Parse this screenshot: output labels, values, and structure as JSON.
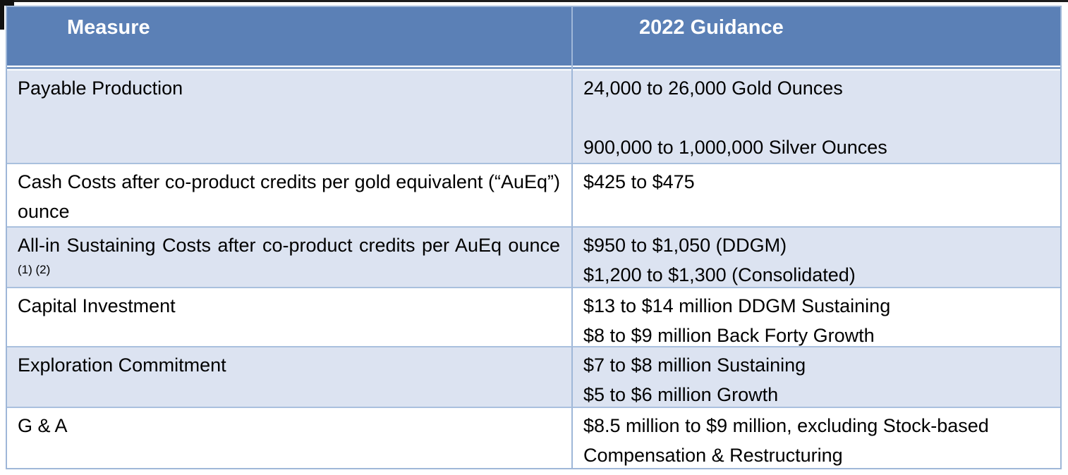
{
  "table": {
    "header": {
      "measure_label": "Measure",
      "guidance_label": "2022 Guidance"
    },
    "rows": [
      {
        "measure": "Payable Production",
        "values": [
          "24,000 to 26,000 Gold Ounces",
          "",
          "900,000 to 1,000,000 Silver Ounces"
        ]
      },
      {
        "measure": "Cash Costs after co-product credits per gold equivalent (“AuEq”) ounce",
        "values": [
          "$425 to $475"
        ]
      },
      {
        "measure": "All-in Sustaining Costs after co-product credits per AuEq ounce",
        "footnote_sup": "(1) (2)",
        "values": [
          "$950 to $1,050 (DDGM)",
          "$1,200 to $1,300 (Consolidated)"
        ]
      },
      {
        "measure": "Capital Investment",
        "values": [
          "$13 to $14 million DDGM Sustaining",
          "$8 to $9 million Back Forty Growth"
        ]
      },
      {
        "measure": "Exploration Commitment",
        "values": [
          "$7 to $8 million Sustaining",
          "$5 to $6 million Growth"
        ]
      },
      {
        "measure": "G & A",
        "values": [
          "$8.5 million to $9 million, excluding Stock-based Compensation & Restructuring"
        ]
      }
    ],
    "colors": {
      "header_fill": "#5B80B6",
      "header_text": "#FFFFFF",
      "banded_row_fill": "#DCE3F1",
      "plain_row_fill": "#FFFFFF",
      "grid_border": "#9FB7D8",
      "row_border": "#A9C0DE",
      "header_rule": "#7D9CC6",
      "body_text": "#000000"
    }
  }
}
